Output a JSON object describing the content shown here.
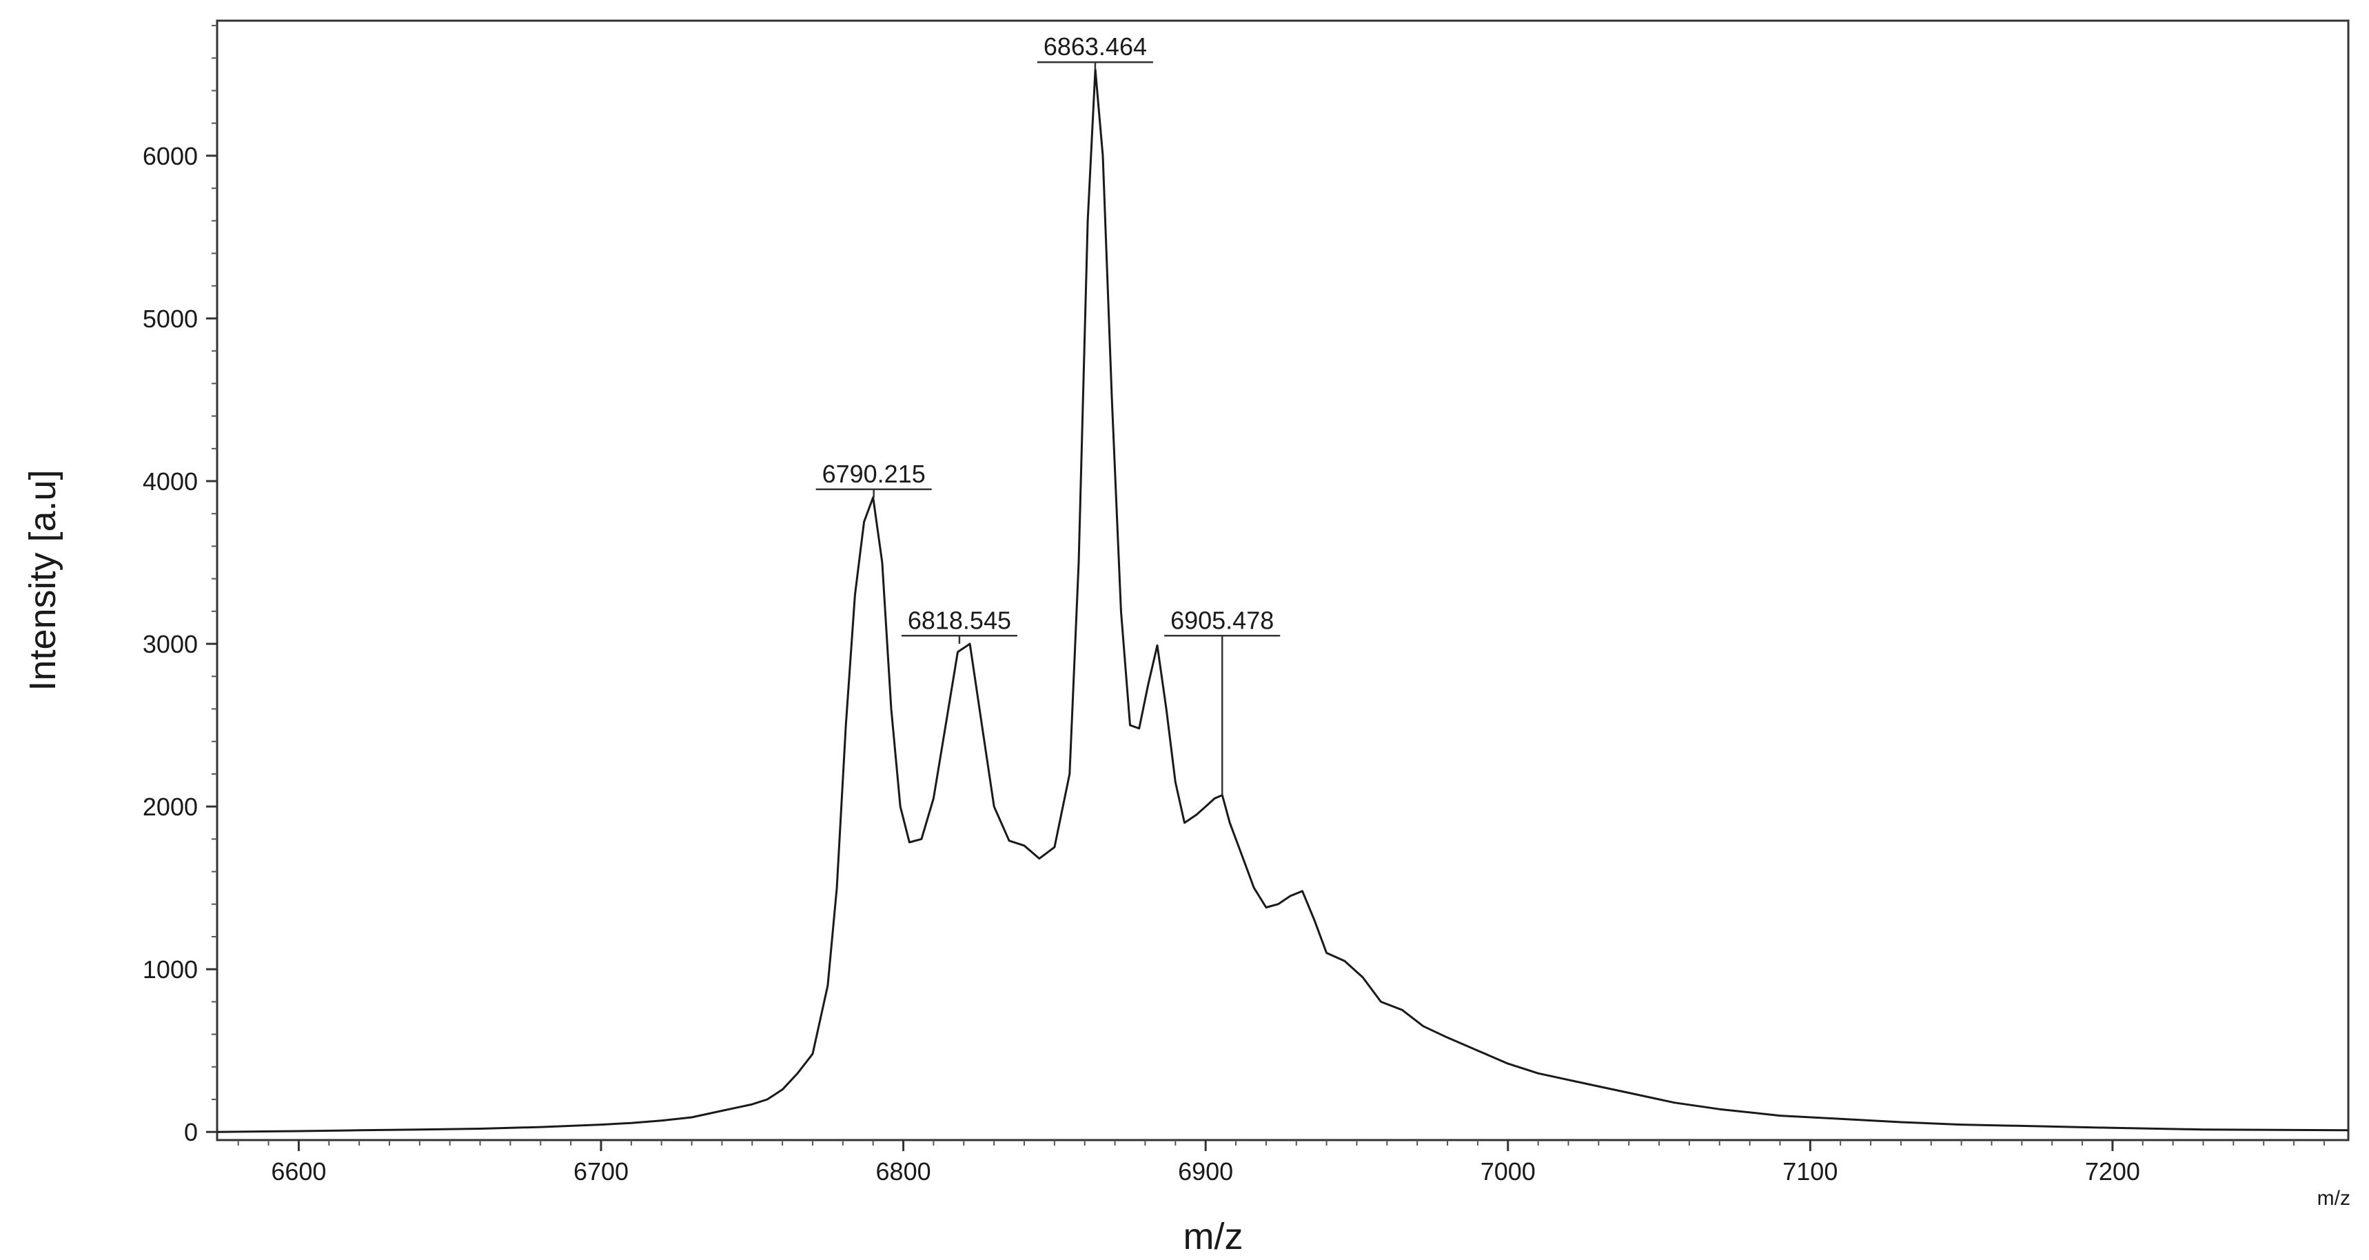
{
  "chart_data": {
    "type": "line",
    "title": "",
    "xlabel": "m/z",
    "ylabel": "Intensity [a.u]",
    "x_unit_label": "m/z",
    "xlim": [
      6573,
      7278
    ],
    "ylim": [
      -50,
      6830
    ],
    "x_ticks": [
      6600,
      6700,
      6800,
      6900,
      7000,
      7100,
      7200
    ],
    "x_tick_labels": [
      "6600",
      "6700",
      "6800",
      "6900",
      "7000",
      "7100",
      "7200"
    ],
    "y_ticks": [
      0,
      1000,
      2000,
      3000,
      4000,
      5000,
      6000
    ],
    "y_tick_labels": [
      "0",
      "1000",
      "2000",
      "3000",
      "4000",
      "5000",
      "6000"
    ],
    "grid": false,
    "line_color": "#1a1a1a",
    "series": [
      {
        "x": [
          6573,
          6600,
          6620,
          6640,
          6660,
          6680,
          6700,
          6710,
          6720,
          6730,
          6740,
          6745,
          6750,
          6755,
          6760,
          6765,
          6770,
          6775,
          6778,
          6781,
          6784,
          6787,
          6790,
          6793,
          6796,
          6799,
          6802,
          6806,
          6810,
          6814,
          6818,
          6822,
          6826,
          6830,
          6835,
          6840,
          6845,
          6850,
          6855,
          6858,
          6861,
          6863.5,
          6866,
          6869,
          6872,
          6875,
          6878,
          6881,
          6884,
          6887,
          6890,
          6893,
          6897,
          6900,
          6903,
          6905.5,
          6908,
          6912,
          6916,
          6920,
          6924,
          6928,
          6932,
          6936,
          6940,
          6946,
          6952,
          6958,
          6965,
          6972,
          6980,
          6990,
          7000,
          7010,
          7020,
          7030,
          7040,
          7055,
          7070,
          7090,
          7110,
          7130,
          7150,
          7175,
          7200,
          7230,
          7278
        ],
        "values": [
          0,
          5,
          10,
          15,
          20,
          30,
          45,
          55,
          70,
          90,
          130,
          150,
          170,
          200,
          260,
          360,
          480,
          900,
          1500,
          2500,
          3300,
          3750,
          3900,
          3500,
          2600,
          2000,
          1780,
          1800,
          2050,
          2500,
          2950,
          3000,
          2500,
          2000,
          1790,
          1760,
          1680,
          1750,
          2200,
          3500,
          5600,
          6530,
          6000,
          4500,
          3200,
          2500,
          2480,
          2750,
          2990,
          2600,
          2150,
          1900,
          1950,
          2000,
          2050,
          2070,
          1900,
          1700,
          1500,
          1380,
          1400,
          1450,
          1480,
          1300,
          1100,
          1050,
          950,
          800,
          750,
          650,
          580,
          500,
          420,
          360,
          320,
          280,
          240,
          180,
          140,
          100,
          80,
          60,
          45,
          35,
          25,
          15,
          10
        ]
      }
    ],
    "peaks": [
      {
        "mz": 6790.215,
        "label": "6790.215",
        "intensity": 3900,
        "label_intensity": 3950
      },
      {
        "mz": 6818.545,
        "label": "6818.545",
        "intensity": 3000,
        "label_intensity": 3050
      },
      {
        "mz": 6863.464,
        "label": "6863.464",
        "intensity": 6530,
        "label_intensity": 6575
      },
      {
        "mz": 6905.478,
        "label": "6905.478",
        "intensity": 2070,
        "label_intensity": 3050
      }
    ]
  }
}
